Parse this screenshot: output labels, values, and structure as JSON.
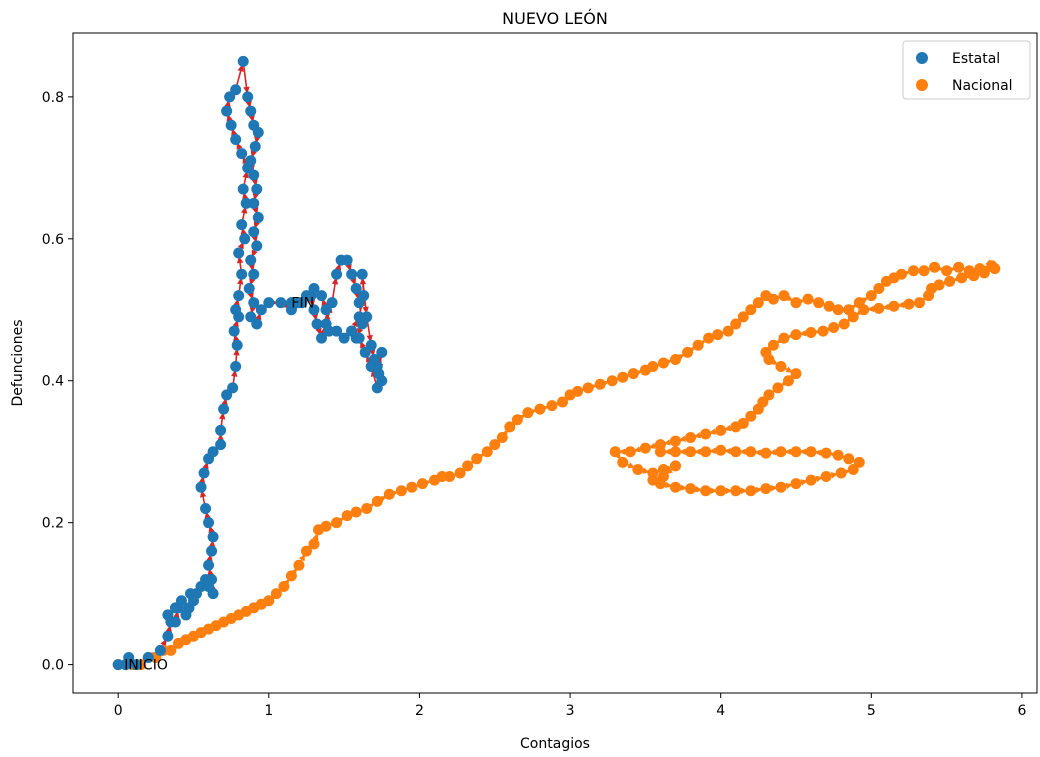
{
  "chart_data": {
    "type": "scatter",
    "title": "NUEVO LEÓN",
    "xlabel": "Contagios",
    "ylabel": "Defunciones",
    "xlim": [
      -0.3,
      6.1
    ],
    "ylim": [
      -0.04,
      0.89
    ],
    "xticks": [
      0,
      1,
      2,
      3,
      4,
      5,
      6
    ],
    "yticks": [
      0.0,
      0.2,
      0.4,
      0.6,
      0.8
    ],
    "xtick_labels": [
      "0",
      "1",
      "2",
      "3",
      "4",
      "5",
      "6"
    ],
    "ytick_labels": [
      "0.0",
      "0.2",
      "0.4",
      "0.6",
      "0.8"
    ],
    "grid": false,
    "legend_position": "top-right",
    "annotations": [
      {
        "text": "INICIO",
        "x": 0.04,
        "y": 0.0
      },
      {
        "text": "FIN",
        "x": 1.15,
        "y": 0.51
      }
    ],
    "series": [
      {
        "name": "Estatal",
        "color": "#1f77b4",
        "arrow_color": "#d62728",
        "points": [
          [
            0.0,
            0.0
          ],
          [
            0.05,
            0.0
          ],
          [
            0.07,
            0.01
          ],
          [
            0.12,
            0.0
          ],
          [
            0.2,
            0.01
          ],
          [
            0.28,
            0.02
          ],
          [
            0.33,
            0.04
          ],
          [
            0.35,
            0.06
          ],
          [
            0.33,
            0.07
          ],
          [
            0.38,
            0.06
          ],
          [
            0.4,
            0.08
          ],
          [
            0.42,
            0.09
          ],
          [
            0.38,
            0.08
          ],
          [
            0.45,
            0.07
          ],
          [
            0.47,
            0.08
          ],
          [
            0.5,
            0.09
          ],
          [
            0.52,
            0.1
          ],
          [
            0.48,
            0.1
          ],
          [
            0.55,
            0.11
          ],
          [
            0.58,
            0.12
          ],
          [
            0.6,
            0.11
          ],
          [
            0.63,
            0.1
          ],
          [
            0.62,
            0.12
          ],
          [
            0.6,
            0.14
          ],
          [
            0.62,
            0.16
          ],
          [
            0.63,
            0.18
          ],
          [
            0.6,
            0.2
          ],
          [
            0.58,
            0.22
          ],
          [
            0.55,
            0.25
          ],
          [
            0.57,
            0.27
          ],
          [
            0.6,
            0.29
          ],
          [
            0.63,
            0.3
          ],
          [
            0.68,
            0.31
          ],
          [
            0.68,
            0.33
          ],
          [
            0.7,
            0.36
          ],
          [
            0.72,
            0.38
          ],
          [
            0.76,
            0.39
          ],
          [
            0.78,
            0.42
          ],
          [
            0.79,
            0.45
          ],
          [
            0.77,
            0.47
          ],
          [
            0.8,
            0.49
          ],
          [
            0.78,
            0.5
          ],
          [
            0.8,
            0.52
          ],
          [
            0.82,
            0.55
          ],
          [
            0.8,
            0.58
          ],
          [
            0.84,
            0.6
          ],
          [
            0.82,
            0.62
          ],
          [
            0.85,
            0.65
          ],
          [
            0.83,
            0.67
          ],
          [
            0.86,
            0.7
          ],
          [
            0.82,
            0.72
          ],
          [
            0.78,
            0.74
          ],
          [
            0.75,
            0.76
          ],
          [
            0.72,
            0.78
          ],
          [
            0.74,
            0.8
          ],
          [
            0.78,
            0.81
          ],
          [
            0.83,
            0.85
          ],
          [
            0.86,
            0.8
          ],
          [
            0.88,
            0.78
          ],
          [
            0.9,
            0.76
          ],
          [
            0.93,
            0.75
          ],
          [
            0.91,
            0.73
          ],
          [
            0.88,
            0.71
          ],
          [
            0.9,
            0.69
          ],
          [
            0.92,
            0.67
          ],
          [
            0.9,
            0.65
          ],
          [
            0.93,
            0.63
          ],
          [
            0.9,
            0.61
          ],
          [
            0.92,
            0.59
          ],
          [
            0.88,
            0.57
          ],
          [
            0.9,
            0.55
          ],
          [
            0.87,
            0.53
          ],
          [
            0.9,
            0.51
          ],
          [
            0.88,
            0.49
          ],
          [
            0.92,
            0.48
          ],
          [
            0.95,
            0.5
          ],
          [
            1.0,
            0.51
          ],
          [
            1.08,
            0.51
          ],
          [
            1.15,
            0.5
          ],
          [
            1.22,
            0.51
          ],
          [
            1.28,
            0.52
          ],
          [
            1.3,
            0.5
          ],
          [
            1.32,
            0.48
          ],
          [
            1.35,
            0.46
          ],
          [
            1.38,
            0.48
          ],
          [
            1.42,
            0.51
          ],
          [
            1.45,
            0.55
          ],
          [
            1.48,
            0.57
          ],
          [
            1.52,
            0.57
          ],
          [
            1.55,
            0.55
          ],
          [
            1.58,
            0.53
          ],
          [
            1.6,
            0.51
          ],
          [
            1.62,
            0.48
          ],
          [
            1.58,
            0.46
          ],
          [
            1.55,
            0.47
          ],
          [
            1.6,
            0.49
          ],
          [
            1.63,
            0.52
          ],
          [
            1.62,
            0.55
          ],
          [
            1.65,
            0.49
          ],
          [
            1.68,
            0.45
          ],
          [
            1.7,
            0.43
          ],
          [
            1.72,
            0.42
          ],
          [
            1.75,
            0.44
          ],
          [
            1.73,
            0.41
          ],
          [
            1.75,
            0.4
          ],
          [
            1.72,
            0.39
          ],
          [
            1.68,
            0.42
          ],
          [
            1.64,
            0.44
          ],
          [
            1.6,
            0.46
          ],
          [
            1.55,
            0.47
          ],
          [
            1.5,
            0.46
          ],
          [
            1.45,
            0.47
          ],
          [
            1.4,
            0.47
          ],
          [
            1.38,
            0.5
          ],
          [
            1.35,
            0.52
          ],
          [
            1.3,
            0.53
          ],
          [
            1.25,
            0.52
          ],
          [
            1.2,
            0.51
          ],
          [
            1.15,
            0.51
          ]
        ]
      },
      {
        "name": "Nacional",
        "color": "#ff7f0e",
        "arrow_color": "#ff7f0e",
        "points": [
          [
            0.0,
            0.0
          ],
          [
            0.05,
            0.0
          ],
          [
            0.1,
            0.0
          ],
          [
            0.15,
            0.0
          ],
          [
            0.2,
            0.01
          ],
          [
            0.25,
            0.01
          ],
          [
            0.3,
            0.02
          ],
          [
            0.35,
            0.02
          ],
          [
            0.4,
            0.03
          ],
          [
            0.45,
            0.035
          ],
          [
            0.5,
            0.04
          ],
          [
            0.55,
            0.045
          ],
          [
            0.6,
            0.05
          ],
          [
            0.65,
            0.055
          ],
          [
            0.7,
            0.06
          ],
          [
            0.75,
            0.065
          ],
          [
            0.8,
            0.07
          ],
          [
            0.85,
            0.075
          ],
          [
            0.9,
            0.08
          ],
          [
            0.95,
            0.085
          ],
          [
            1.0,
            0.09
          ],
          [
            1.05,
            0.1
          ],
          [
            1.1,
            0.11
          ],
          [
            1.15,
            0.125
          ],
          [
            1.2,
            0.14
          ],
          [
            1.25,
            0.16
          ],
          [
            1.3,
            0.17
          ],
          [
            1.33,
            0.19
          ],
          [
            1.38,
            0.195
          ],
          [
            1.45,
            0.2
          ],
          [
            1.52,
            0.21
          ],
          [
            1.58,
            0.215
          ],
          [
            1.65,
            0.22
          ],
          [
            1.72,
            0.23
          ],
          [
            1.8,
            0.24
          ],
          [
            1.88,
            0.245
          ],
          [
            1.95,
            0.25
          ],
          [
            2.02,
            0.255
          ],
          [
            2.1,
            0.26
          ],
          [
            2.15,
            0.265
          ],
          [
            2.2,
            0.265
          ],
          [
            2.27,
            0.27
          ],
          [
            2.32,
            0.28
          ],
          [
            2.38,
            0.29
          ],
          [
            2.45,
            0.3
          ],
          [
            2.5,
            0.31
          ],
          [
            2.55,
            0.32
          ],
          [
            2.6,
            0.335
          ],
          [
            2.65,
            0.345
          ],
          [
            2.72,
            0.355
          ],
          [
            2.8,
            0.36
          ],
          [
            2.88,
            0.365
          ],
          [
            2.95,
            0.37
          ],
          [
            3.0,
            0.38
          ],
          [
            3.05,
            0.385
          ],
          [
            3.12,
            0.39
          ],
          [
            3.2,
            0.395
          ],
          [
            3.28,
            0.4
          ],
          [
            3.35,
            0.405
          ],
          [
            3.42,
            0.41
          ],
          [
            3.5,
            0.415
          ],
          [
            3.55,
            0.42
          ],
          [
            3.62,
            0.425
          ],
          [
            3.7,
            0.43
          ],
          [
            3.78,
            0.44
          ],
          [
            3.85,
            0.45
          ],
          [
            3.92,
            0.46
          ],
          [
            3.98,
            0.465
          ],
          [
            4.05,
            0.47
          ],
          [
            4.1,
            0.48
          ],
          [
            4.15,
            0.49
          ],
          [
            4.2,
            0.5
          ],
          [
            4.25,
            0.51
          ],
          [
            4.3,
            0.52
          ],
          [
            4.35,
            0.515
          ],
          [
            4.42,
            0.52
          ],
          [
            4.5,
            0.51
          ],
          [
            4.58,
            0.515
          ],
          [
            4.65,
            0.51
          ],
          [
            4.72,
            0.505
          ],
          [
            4.78,
            0.5
          ],
          [
            4.85,
            0.5
          ],
          [
            4.92,
            0.51
          ],
          [
            5.0,
            0.52
          ],
          [
            5.05,
            0.53
          ],
          [
            5.1,
            0.54
          ],
          [
            5.15,
            0.545
          ],
          [
            5.2,
            0.55
          ],
          [
            5.28,
            0.555
          ],
          [
            5.35,
            0.555
          ],
          [
            5.42,
            0.56
          ],
          [
            5.5,
            0.555
          ],
          [
            5.58,
            0.56
          ],
          [
            5.65,
            0.555
          ],
          [
            5.72,
            0.558
          ],
          [
            5.8,
            0.562
          ],
          [
            5.82,
            0.558
          ],
          [
            5.75,
            0.552
          ],
          [
            5.68,
            0.548
          ],
          [
            5.6,
            0.545
          ],
          [
            5.52,
            0.54
          ],
          [
            5.45,
            0.535
          ],
          [
            5.4,
            0.53
          ],
          [
            5.38,
            0.52
          ],
          [
            5.32,
            0.51
          ],
          [
            5.25,
            0.508
          ],
          [
            5.15,
            0.505
          ],
          [
            5.05,
            0.502
          ],
          [
            4.95,
            0.5
          ],
          [
            4.88,
            0.49
          ],
          [
            4.82,
            0.48
          ],
          [
            4.75,
            0.475
          ],
          [
            4.68,
            0.47
          ],
          [
            4.6,
            0.468
          ],
          [
            4.5,
            0.465
          ],
          [
            4.42,
            0.46
          ],
          [
            4.35,
            0.45
          ],
          [
            4.3,
            0.44
          ],
          [
            4.32,
            0.43
          ],
          [
            4.4,
            0.42
          ],
          [
            4.5,
            0.41
          ],
          [
            4.45,
            0.4
          ],
          [
            4.38,
            0.39
          ],
          [
            4.32,
            0.38
          ],
          [
            4.28,
            0.37
          ],
          [
            4.25,
            0.36
          ],
          [
            4.2,
            0.35
          ],
          [
            4.15,
            0.34
          ],
          [
            4.1,
            0.335
          ],
          [
            4.0,
            0.33
          ],
          [
            3.9,
            0.325
          ],
          [
            3.8,
            0.32
          ],
          [
            3.7,
            0.315
          ],
          [
            3.6,
            0.31
          ],
          [
            3.5,
            0.305
          ],
          [
            3.4,
            0.3
          ],
          [
            3.3,
            0.3
          ],
          [
            3.35,
            0.285
          ],
          [
            3.45,
            0.275
          ],
          [
            3.55,
            0.27
          ],
          [
            3.62,
            0.275
          ],
          [
            3.7,
            0.28
          ],
          [
            3.62,
            0.265
          ],
          [
            3.55,
            0.26
          ],
          [
            3.6,
            0.255
          ],
          [
            3.7,
            0.25
          ],
          [
            3.8,
            0.248
          ],
          [
            3.9,
            0.245
          ],
          [
            4.0,
            0.245
          ],
          [
            4.1,
            0.245
          ],
          [
            4.2,
            0.245
          ],
          [
            4.3,
            0.248
          ],
          [
            4.4,
            0.25
          ],
          [
            4.5,
            0.255
          ],
          [
            4.6,
            0.26
          ],
          [
            4.7,
            0.265
          ],
          [
            4.8,
            0.27
          ],
          [
            4.88,
            0.275
          ],
          [
            4.92,
            0.285
          ],
          [
            4.85,
            0.29
          ],
          [
            4.78,
            0.295
          ],
          [
            4.7,
            0.298
          ],
          [
            4.6,
            0.3
          ],
          [
            4.5,
            0.3
          ],
          [
            4.4,
            0.3
          ],
          [
            4.3,
            0.298
          ],
          [
            4.2,
            0.3
          ],
          [
            4.1,
            0.3
          ],
          [
            4.0,
            0.302
          ],
          [
            3.9,
            0.3
          ],
          [
            3.8,
            0.3
          ],
          [
            3.7,
            0.3
          ],
          [
            3.6,
            0.3
          ]
        ]
      }
    ]
  }
}
